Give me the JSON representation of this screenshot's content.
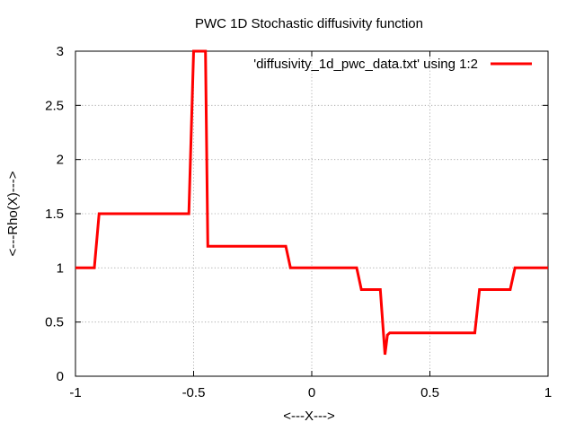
{
  "chart_data": {
    "type": "line",
    "title": "PWC 1D Stochastic diffusivity function",
    "xlabel": "<---X--->",
    "ylabel": "<---Rho(X)--->",
    "xlim": [
      -1,
      1
    ],
    "ylim": [
      0,
      3
    ],
    "xticks": [
      -1,
      -0.5,
      0,
      0.5,
      1
    ],
    "xtick_labels": [
      "-1",
      "-0.5",
      "0",
      "0.5",
      "1"
    ],
    "yticks": [
      0,
      0.5,
      1,
      1.5,
      2,
      2.5,
      3
    ],
    "ytick_labels": [
      "0",
      "0.5",
      "1",
      "1.5",
      "2",
      "2.5",
      "3"
    ],
    "grid": true,
    "legend_position": "top-right",
    "series": [
      {
        "name": "'diffusivity_1d_pwc_data.txt' using 1:2",
        "color": "#ff0000",
        "x": [
          -1.0,
          -0.92,
          -0.9,
          -0.52,
          -0.5,
          -0.49,
          -0.46,
          -0.45,
          -0.44,
          -0.11,
          -0.09,
          0.19,
          0.21,
          0.29,
          0.31,
          0.32,
          0.33,
          0.69,
          0.71,
          0.84,
          0.86,
          1.0
        ],
        "y": [
          1.0,
          1.0,
          1.5,
          1.5,
          3.0,
          3.0,
          3.0,
          3.0,
          1.2,
          1.2,
          1.0,
          1.0,
          0.8,
          0.8,
          0.2,
          0.38,
          0.4,
          0.4,
          0.8,
          0.8,
          1.0,
          1.0
        ]
      }
    ]
  }
}
